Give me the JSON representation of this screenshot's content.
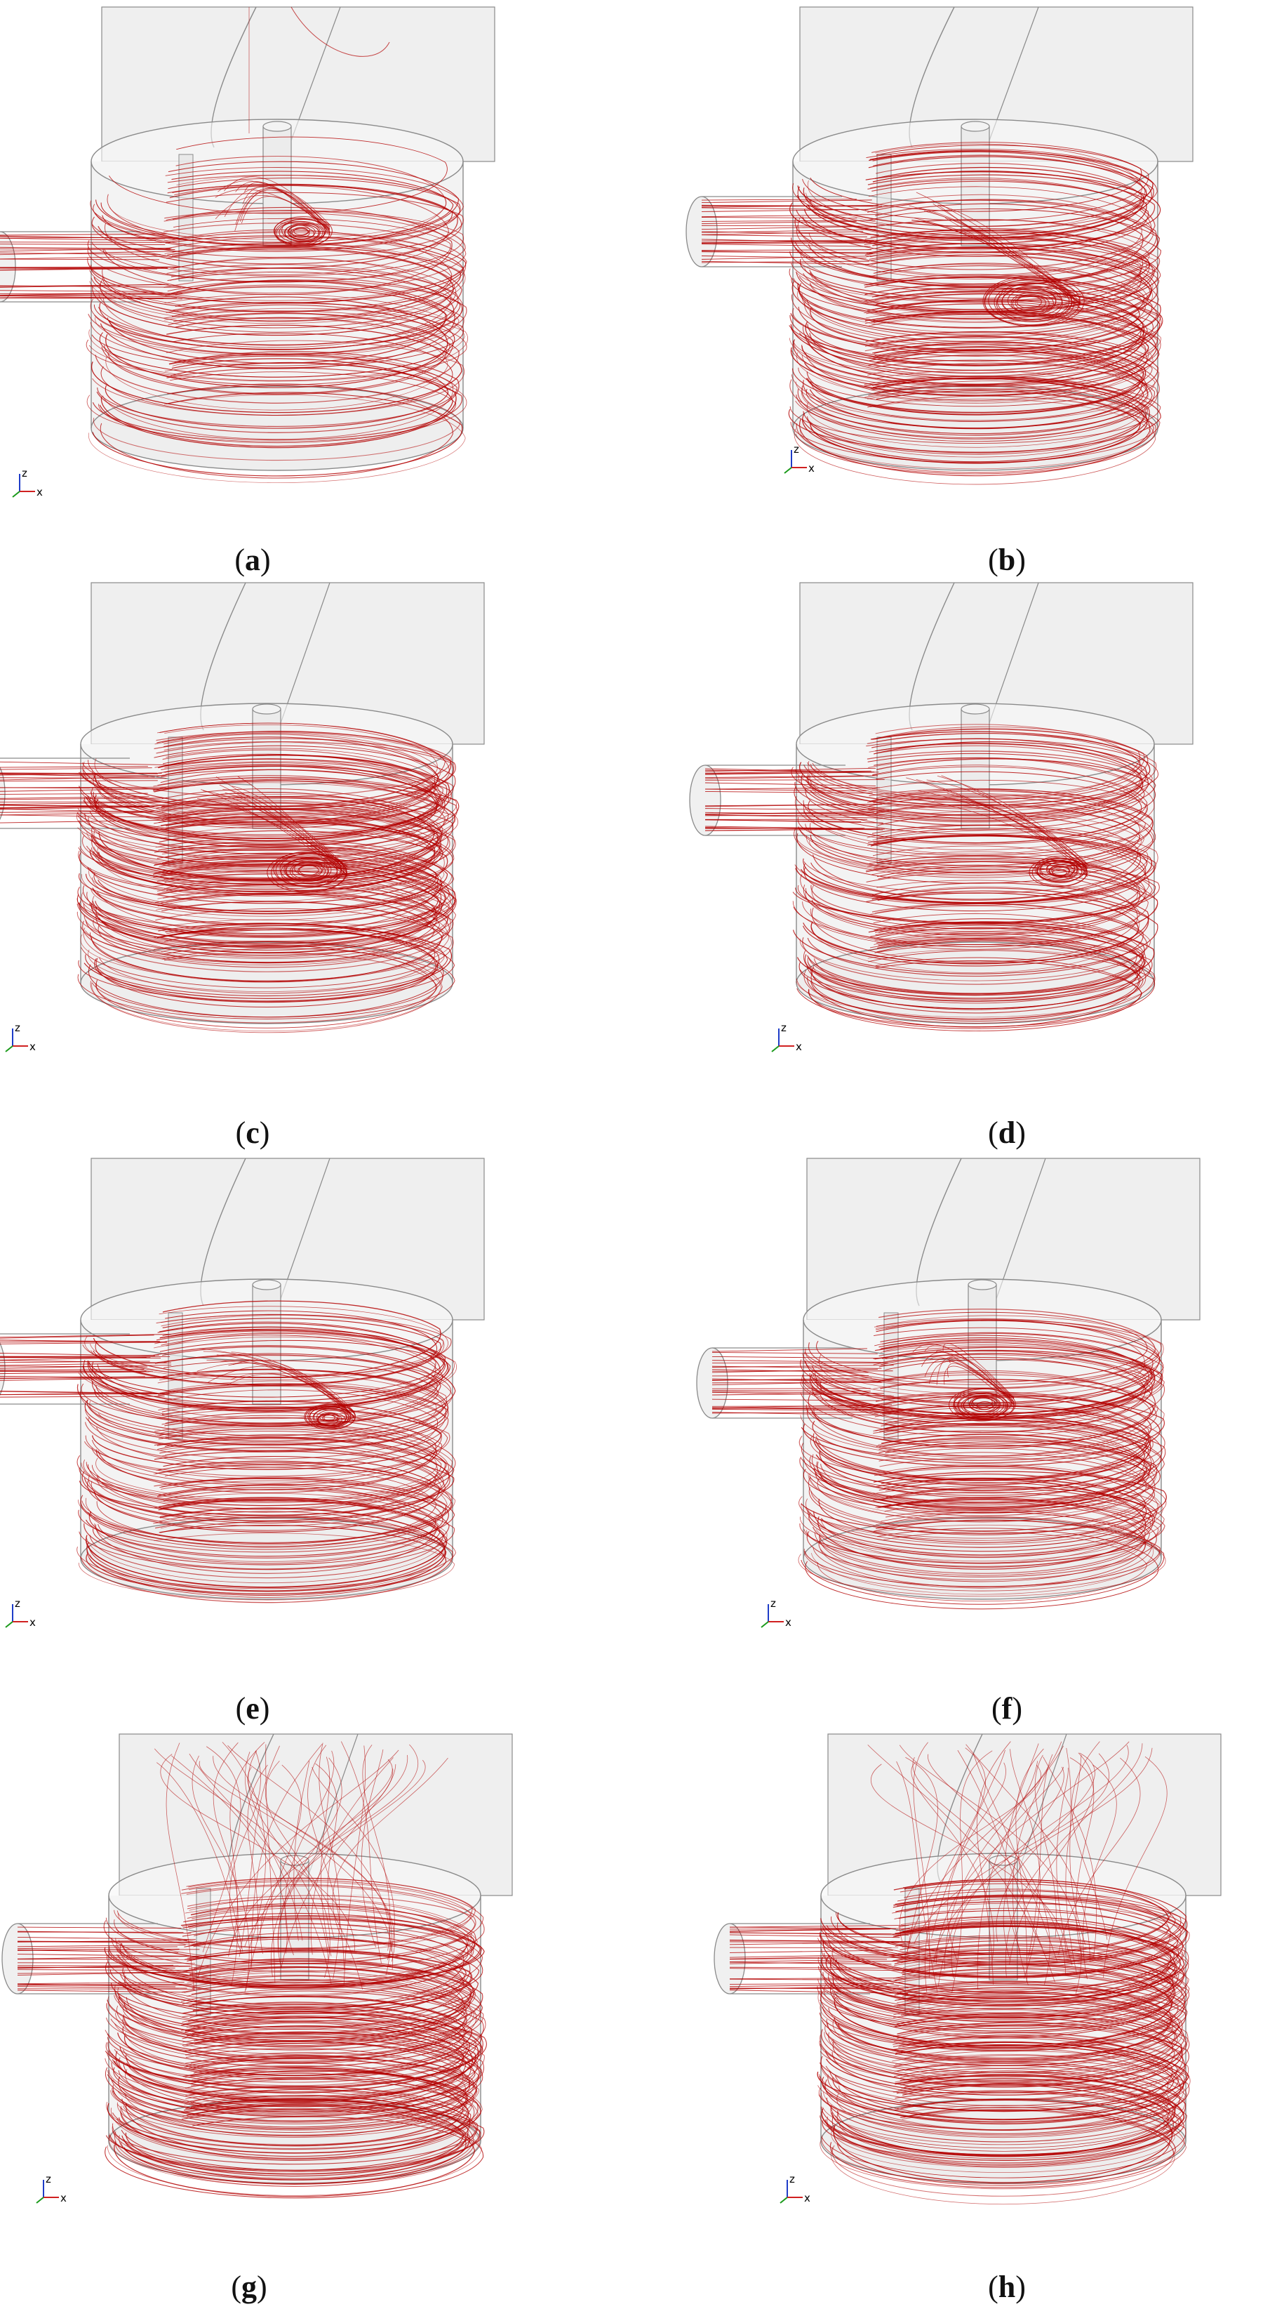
{
  "panels": [
    {
      "id": "a",
      "caption_label": "a"
    },
    {
      "id": "b",
      "caption_label": "b"
    },
    {
      "id": "c",
      "caption_label": "c"
    },
    {
      "id": "d",
      "caption_label": "d"
    },
    {
      "id": "e",
      "caption_label": "e"
    },
    {
      "id": "f",
      "caption_label": "f"
    },
    {
      "id": "g",
      "caption_label": "g"
    },
    {
      "id": "h",
      "caption_label": "h"
    }
  ],
  "axes_triad": {
    "z": "z",
    "x": "x"
  },
  "colors": {
    "streamline": "#b30000",
    "geometry_edge": "#8a8a8a",
    "geometry_fill": "#e9e9e9",
    "caption_text": "#111111"
  },
  "icons": {
    "axes": "xyz-axes-triad-icon"
  }
}
